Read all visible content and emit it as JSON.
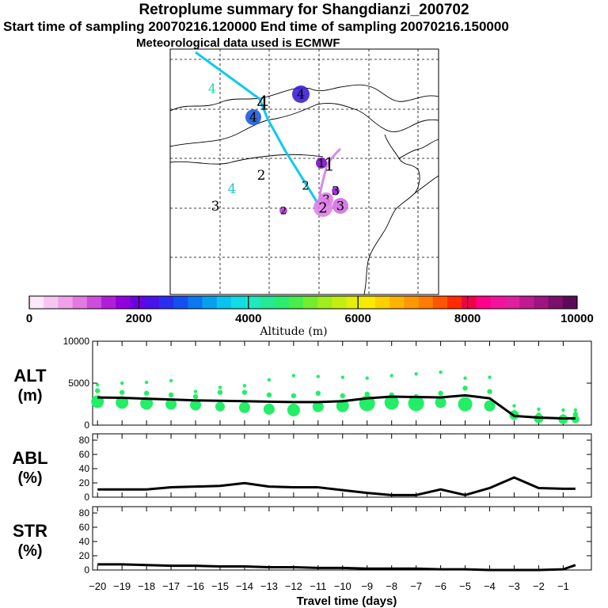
{
  "header": {
    "title": "Retroplume summary for Shangdianzi_200702",
    "sampling_line": "Start time of sampling 20070216.120000      End time of sampling 20070216.150000",
    "met_line": "Meteorological data used is ECMWF"
  },
  "map": {
    "markers": [
      {
        "label": "4",
        "color": "#1bd6a8"
      },
      {
        "label": "4",
        "color": "#000000"
      },
      {
        "label": "4",
        "color": "#3a1fd6"
      },
      {
        "label": "4",
        "color": "#1e5bd9"
      },
      {
        "label": "4",
        "color": "#20c7c7"
      },
      {
        "label": "3",
        "color": "#000000"
      },
      {
        "label": "2",
        "color": "#000000"
      },
      {
        "label": "2",
        "color": "#000000"
      },
      {
        "label": "1",
        "color": "#7a10c8"
      },
      {
        "label": "1",
        "color": "#000000"
      },
      {
        "label": "3",
        "color": "#9a1fd6"
      },
      {
        "label": "3",
        "color": "#d070e0"
      },
      {
        "label": "3",
        "color": "#e080e8"
      },
      {
        "label": "2",
        "color": "#e080e8"
      },
      {
        "label": "2",
        "color": "#b040d0"
      }
    ]
  },
  "colorbar": {
    "ticks": [
      "0",
      "2000",
      "4000",
      "6000",
      "8000",
      "10000"
    ],
    "label": "Altitude (m)",
    "colors": [
      "#fde8fb",
      "#f6c6f1",
      "#efa1ea",
      "#e37ae0",
      "#cd4ddd",
      "#b21ed8",
      "#9100db",
      "#6d00e0",
      "#4a12ea",
      "#2a2ef0",
      "#1450f0",
      "#0a78f0",
      "#06a0f0",
      "#08c4ee",
      "#10dde4",
      "#20e8c0",
      "#24ea98",
      "#2aec70",
      "#48ee48",
      "#74ee2c",
      "#a0ee1c",
      "#c4ee10",
      "#e4ee08",
      "#faea00",
      "#ffd000",
      "#ffb400",
      "#ff9800",
      "#ff7c00",
      "#ff5400",
      "#ff2a00",
      "#f00048",
      "#ff0088",
      "#f4129c",
      "#e01e9e",
      "#c01a90",
      "#9e1480",
      "#7c0e6c",
      "#5c0a58"
    ]
  },
  "chart_data": [
    {
      "type": "line",
      "panel": "ALT",
      "ylabel": "ALT\n(m)",
      "ylabel_line1": "ALT",
      "ylabel_line2": "(m)",
      "ylim": [
        0,
        10000
      ],
      "yticks": [
        "10000",
        "5000",
        "0"
      ],
      "x": [
        -20,
        -19,
        -18,
        -17,
        -16,
        -15,
        -14,
        -13,
        -12,
        -11,
        -10,
        -9,
        -8,
        -7,
        -6,
        -5,
        -4,
        -3,
        -2,
        -1,
        -0.5
      ],
      "values": [
        3300,
        3250,
        3150,
        3050,
        2950,
        2900,
        2850,
        2800,
        2750,
        2750,
        2850,
        3200,
        3400,
        3350,
        3300,
        3550,
        3200,
        1100,
        900,
        800,
        800
      ],
      "bubbles_x": [
        -20,
        -19,
        -18,
        -17,
        -16,
        -15,
        -14,
        -13,
        -12,
        -11,
        -10,
        -9,
        -8,
        -7,
        -6,
        -5,
        -4,
        -3,
        -2,
        -1,
        -0.5
      ],
      "bubbles_lower": [
        2800,
        2700,
        2600,
        2500,
        2400,
        2200,
        2100,
        1900,
        1800,
        2200,
        2300,
        2600,
        2700,
        2600,
        2700,
        2500,
        2300,
        1200,
        800,
        700,
        700
      ],
      "bubbles_mid": [
        4100,
        3900,
        3800,
        3600,
        3400,
        3900,
        3900,
        3600,
        3500,
        3800,
        3500,
        3700,
        3600,
        3400,
        3800,
        4400,
        4000,
        1500,
        1200,
        1000,
        1300
      ],
      "bubbles_upper": [
        4800,
        5000,
        5100,
        5300,
        4000,
        4500,
        4700,
        5400,
        5900,
        5800,
        5700,
        5600,
        5900,
        6100,
        6300,
        5600,
        5700,
        2300,
        1900,
        1800,
        1800
      ]
    },
    {
      "type": "line",
      "panel": "ABL",
      "ylabel_line1": "ABL",
      "ylabel_line2": "(%)",
      "ylim": [
        0,
        90
      ],
      "yticks": [
        "80",
        "60",
        "40",
        "20",
        "0"
      ],
      "x": [
        -20,
        -19,
        -18,
        -17,
        -16,
        -15,
        -14,
        -13,
        -12,
        -11,
        -10,
        -9,
        -8,
        -7,
        -6,
        -5,
        -4,
        -3,
        -2,
        -1,
        -0.5
      ],
      "values": [
        11,
        11,
        11,
        14,
        15,
        16,
        20,
        15,
        14,
        14,
        10,
        6,
        3,
        3,
        11,
        3,
        13,
        28,
        13,
        12,
        12
      ]
    },
    {
      "type": "line",
      "panel": "STR",
      "ylabel_line1": "STR",
      "ylabel_line2": "(%)",
      "ylim": [
        0,
        90
      ],
      "yticks": [
        "80",
        "60",
        "40",
        "20",
        "0"
      ],
      "x": [
        -20,
        -19,
        -18,
        -17,
        -16,
        -15,
        -14,
        -13,
        -12,
        -11,
        -10,
        -9,
        -8,
        -7,
        -6,
        -5,
        -4,
        -3,
        -2,
        -1,
        -0.5
      ],
      "values": [
        8,
        8,
        7,
        6,
        6,
        5,
        5,
        4,
        4,
        3,
        3,
        2,
        2,
        2,
        1,
        1,
        0,
        0,
        0,
        1,
        7
      ]
    }
  ],
  "xaxis": {
    "ticks": [
      "−20",
      "−19",
      "−18",
      "−17",
      "−16",
      "−15",
      "−14",
      "−13",
      "−12",
      "−11",
      "−10",
      "−9",
      "−8",
      "−7",
      "−6",
      "−5",
      "−4",
      "−3",
      "−2",
      "−1"
    ],
    "tick_values": [
      -20,
      -19,
      -18,
      -17,
      -16,
      -15,
      -14,
      -13,
      -12,
      -11,
      -10,
      -9,
      -8,
      -7,
      -6,
      -5,
      -4,
      -3,
      -2,
      -1
    ],
    "label": "Travel time (days)"
  }
}
